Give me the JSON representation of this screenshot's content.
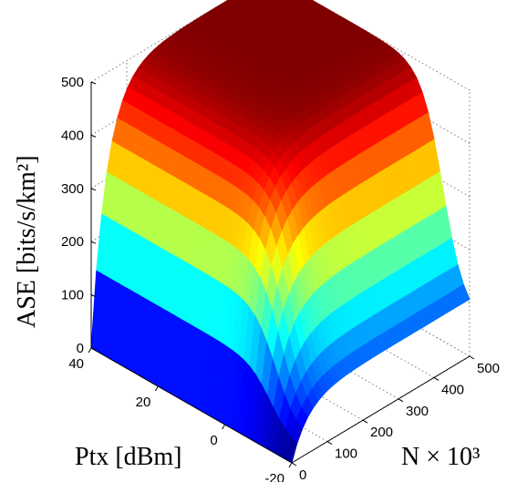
{
  "chart_data": {
    "type": "surface",
    "title": "",
    "zlabel": "ASE [bits/s/km²]",
    "xlabel": "Ptx [dBm]",
    "ylabel": "N × 10³",
    "zlim": [
      0,
      500
    ],
    "ptx_lim": [
      -20,
      40
    ],
    "n_lim": [
      0,
      500
    ],
    "z_ticks": [
      "0",
      "100",
      "200",
      "300",
      "400",
      "500"
    ],
    "ptx_ticks": [
      "40",
      "20",
      "0",
      "-20"
    ],
    "n_ticks": [
      "0",
      "100",
      "200",
      "300",
      "400",
      "500"
    ],
    "colormap": "jet",
    "grid": true,
    "surface_samples": {
      "ptx": [
        -20,
        -10,
        0,
        10,
        20,
        30,
        40
      ],
      "N": [
        0,
        100,
        200,
        300,
        400,
        500
      ],
      "ASE": [
        [
          0,
          40,
          60,
          75,
          80,
          85,
          85
        ],
        [
          50,
          300,
          390,
          410,
          415,
          415,
          415
        ],
        [
          80,
          380,
          440,
          450,
          455,
          455,
          455
        ],
        [
          100,
          420,
          465,
          470,
          472,
          472,
          472
        ],
        [
          120,
          440,
          478,
          480,
          482,
          482,
          482
        ],
        [
          140,
          450,
          485,
          487,
          488,
          488,
          488
        ]
      ]
    }
  }
}
